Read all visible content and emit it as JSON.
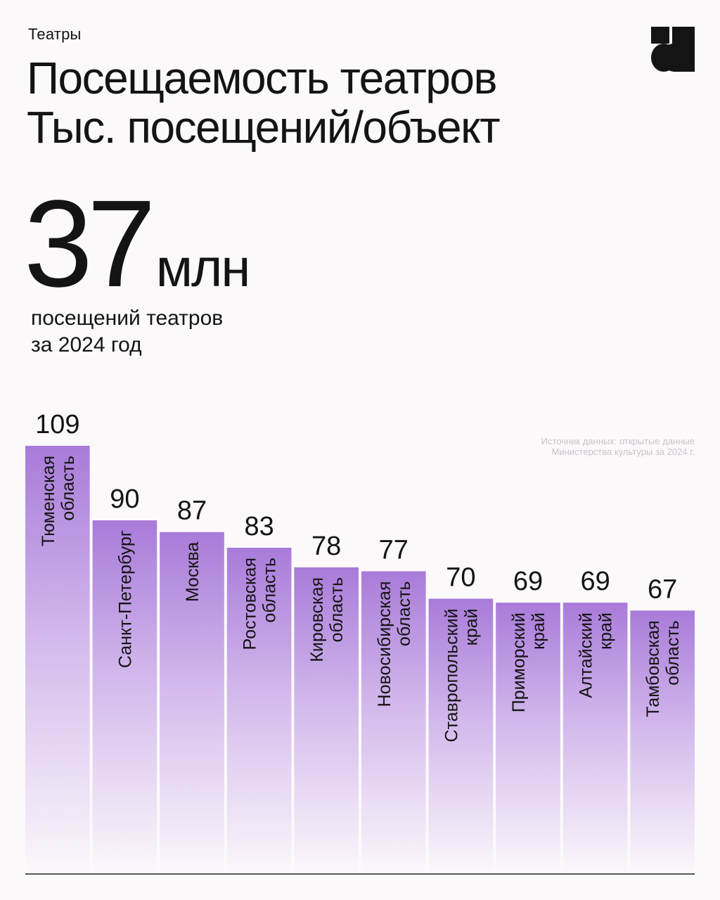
{
  "header": {
    "category": "Театры",
    "title_line1": "Посещаемость театров",
    "title_line2": "Тыс. посещений/объект"
  },
  "highlight": {
    "number": "37",
    "unit": "млн",
    "caption_line1": "посещений театров",
    "caption_line2": "за 2024 год"
  },
  "source": "Источник данных: открытые данные Министерства культуры за 2024 г.",
  "colors": {
    "bar_top": "#a97bd9",
    "bar_bottom": "#fbf8fb",
    "text": "#141414",
    "axis": "#222222"
  },
  "logo_icon": "brand-logo-icon",
  "chart_data": {
    "type": "bar",
    "orientation": "vertical",
    "categories": [
      [
        "Тюменская",
        "область"
      ],
      [
        "Санкт-Петербург"
      ],
      [
        "Москва"
      ],
      [
        "Ростовская",
        "область"
      ],
      [
        "Кировская",
        "область"
      ],
      [
        "Новосибирская",
        "область"
      ],
      [
        "Ставропольский",
        "край"
      ],
      [
        "Приморский",
        "край"
      ],
      [
        "Алтайский",
        "край"
      ],
      [
        "Тамбовская",
        "область"
      ]
    ],
    "values": [
      109,
      90,
      87,
      83,
      78,
      77,
      70,
      69,
      69,
      67
    ],
    "data_labels": [
      "109",
      "90",
      "87",
      "83",
      "78",
      "77",
      "70",
      "69",
      "69",
      "67"
    ],
    "ylim": [
      0,
      109
    ],
    "grid": false,
    "legend": "none"
  }
}
